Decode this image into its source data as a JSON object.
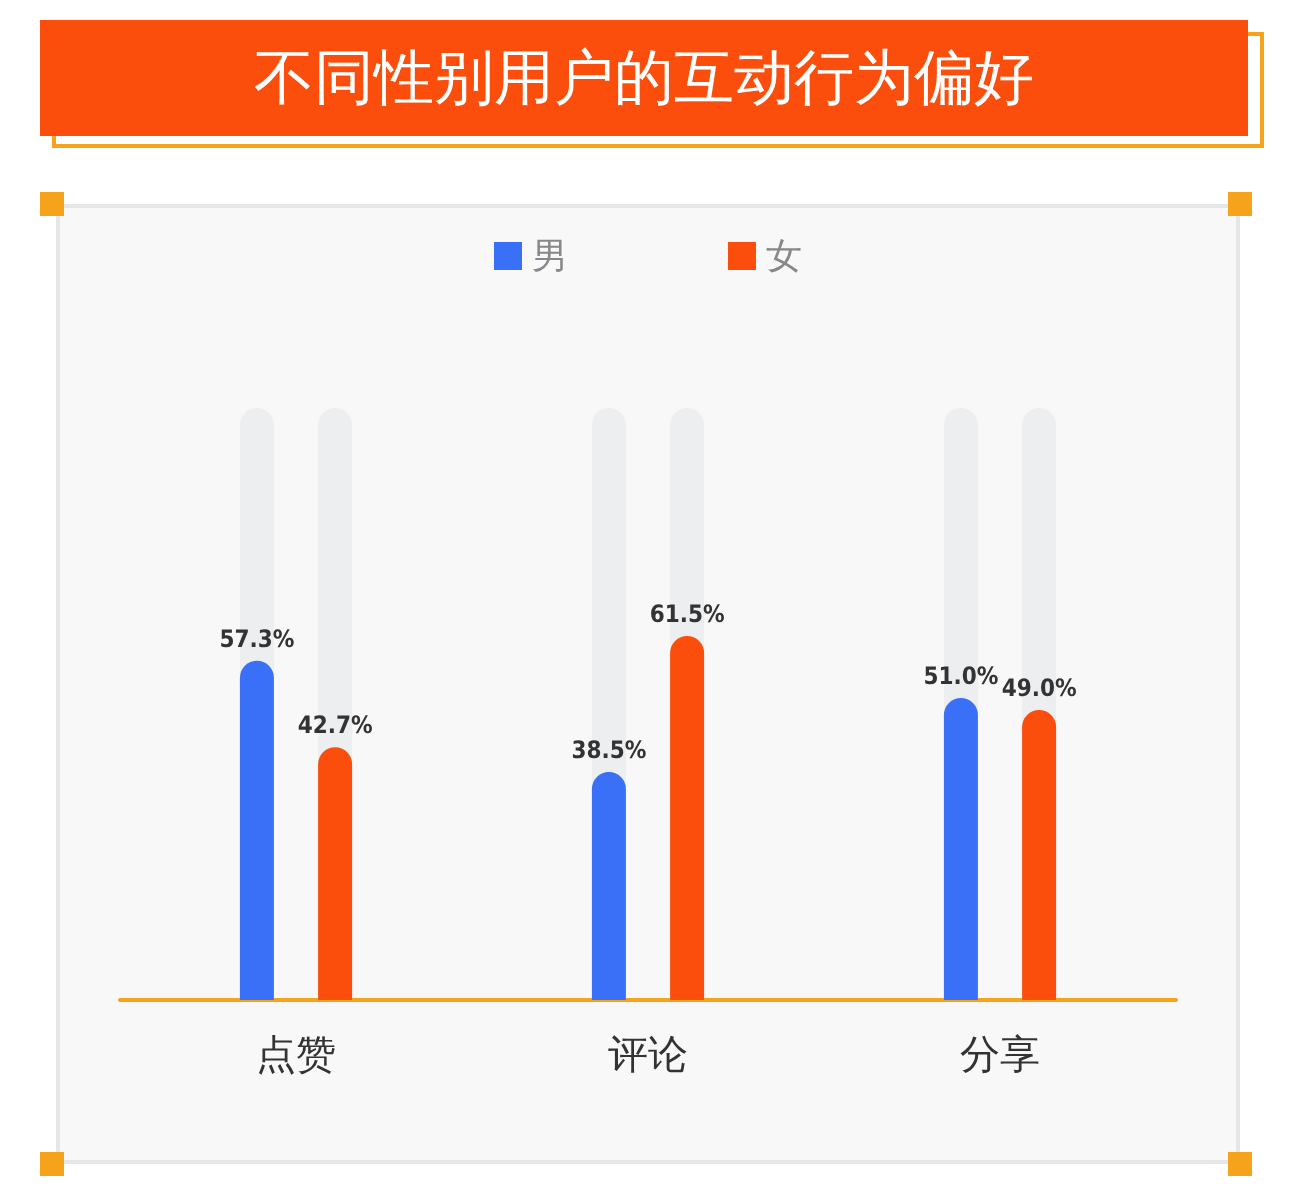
{
  "chart_data": {
    "type": "bar",
    "title": "不同性别用户的互动行为偏好",
    "categories": [
      "点赞",
      "评论",
      "分享"
    ],
    "series": [
      {
        "name": "男",
        "color": "#3a6ff7",
        "values": [
          57.3,
          38.5,
          51.0
        ],
        "value_labels": [
          "57.3%",
          "38.5%",
          "51.0%"
        ]
      },
      {
        "name": "女",
        "color": "#fb4e0c",
        "values": [
          42.7,
          61.5,
          49.0
        ],
        "value_labels": [
          "42.7%",
          "61.5%",
          "49.0%"
        ]
      }
    ],
    "ylim": [
      0,
      100
    ],
    "tick_labels": "x",
    "legend": "top",
    "grid": false
  }
}
